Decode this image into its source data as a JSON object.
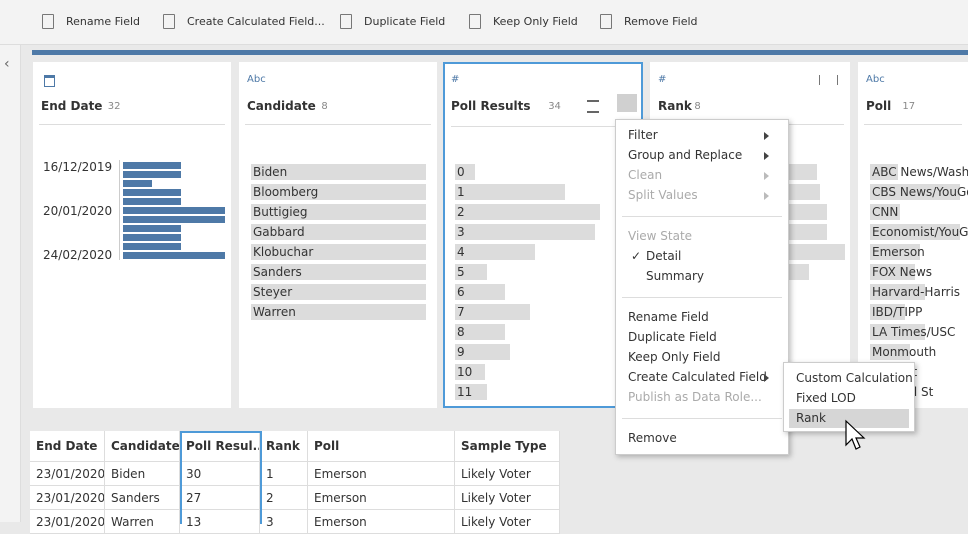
{
  "toolbar": [
    "Rename Field",
    "Create Calculated Field...",
    "Duplicate Field",
    "Keep Only Field",
    "Remove Field"
  ],
  "cards": [
    {
      "title": "End Date",
      "count": "32",
      "labels": [
        "16/12/2019",
        "20/01/2020",
        "24/02/2020"
      ]
    },
    {
      "icon": "Abc",
      "title": "Candidate",
      "count": "8",
      "values": [
        "Biden",
        "Bloomberg",
        "Buttigieg",
        "Gabbard",
        "Klobuchar",
        "Sanders",
        "Steyer",
        "Warren"
      ]
    },
    {
      "icon": "#",
      "title": "Poll Results",
      "count": "34",
      "values": [
        "0",
        "1",
        "2",
        "3",
        "4",
        "5",
        "6",
        "7",
        "8",
        "9",
        "10",
        "11"
      ]
    },
    {
      "icon": "#",
      "title": "Rank",
      "count": "8"
    },
    {
      "icon": "Abc",
      "title": "Poll",
      "count": "17",
      "values": [
        "ABC News/Wash P",
        "CBS News/YouGov",
        "CNN",
        "Economist/YouGo",
        "Emerson",
        "FOX News",
        "Harvard-Harris",
        "IBD/TIPP",
        "LA Times/USC",
        "Monmouth",
        "Consult",
        "ws/Wall St"
      ]
    }
  ],
  "menu": {
    "items": [
      "Filter",
      "Group and Replace",
      "Clean",
      "Split Values",
      "View State",
      "Detail",
      "Summary",
      "Rename Field",
      "Duplicate Field",
      "Keep Only Field",
      "Create Calculated Field",
      "Publish as Data Role...",
      "Remove"
    ],
    "check": "✓",
    "submenu": [
      "Custom Calculation",
      "Fixed LOD",
      "Rank"
    ]
  },
  "table": {
    "headers": [
      "End Date",
      "Candidate",
      "Poll Resul...",
      "Rank",
      "Poll",
      "Sample Type"
    ],
    "rows": [
      [
        "23/01/2020",
        "Biden",
        "30",
        "1",
        "Emerson",
        "Likely Voter"
      ],
      [
        "23/01/2020",
        "Sanders",
        "27",
        "2",
        "Emerson",
        "Likely Voter"
      ],
      [
        "23/01/2020",
        "Warren",
        "13",
        "3",
        "Emerson",
        "Likely Voter"
      ]
    ]
  }
}
